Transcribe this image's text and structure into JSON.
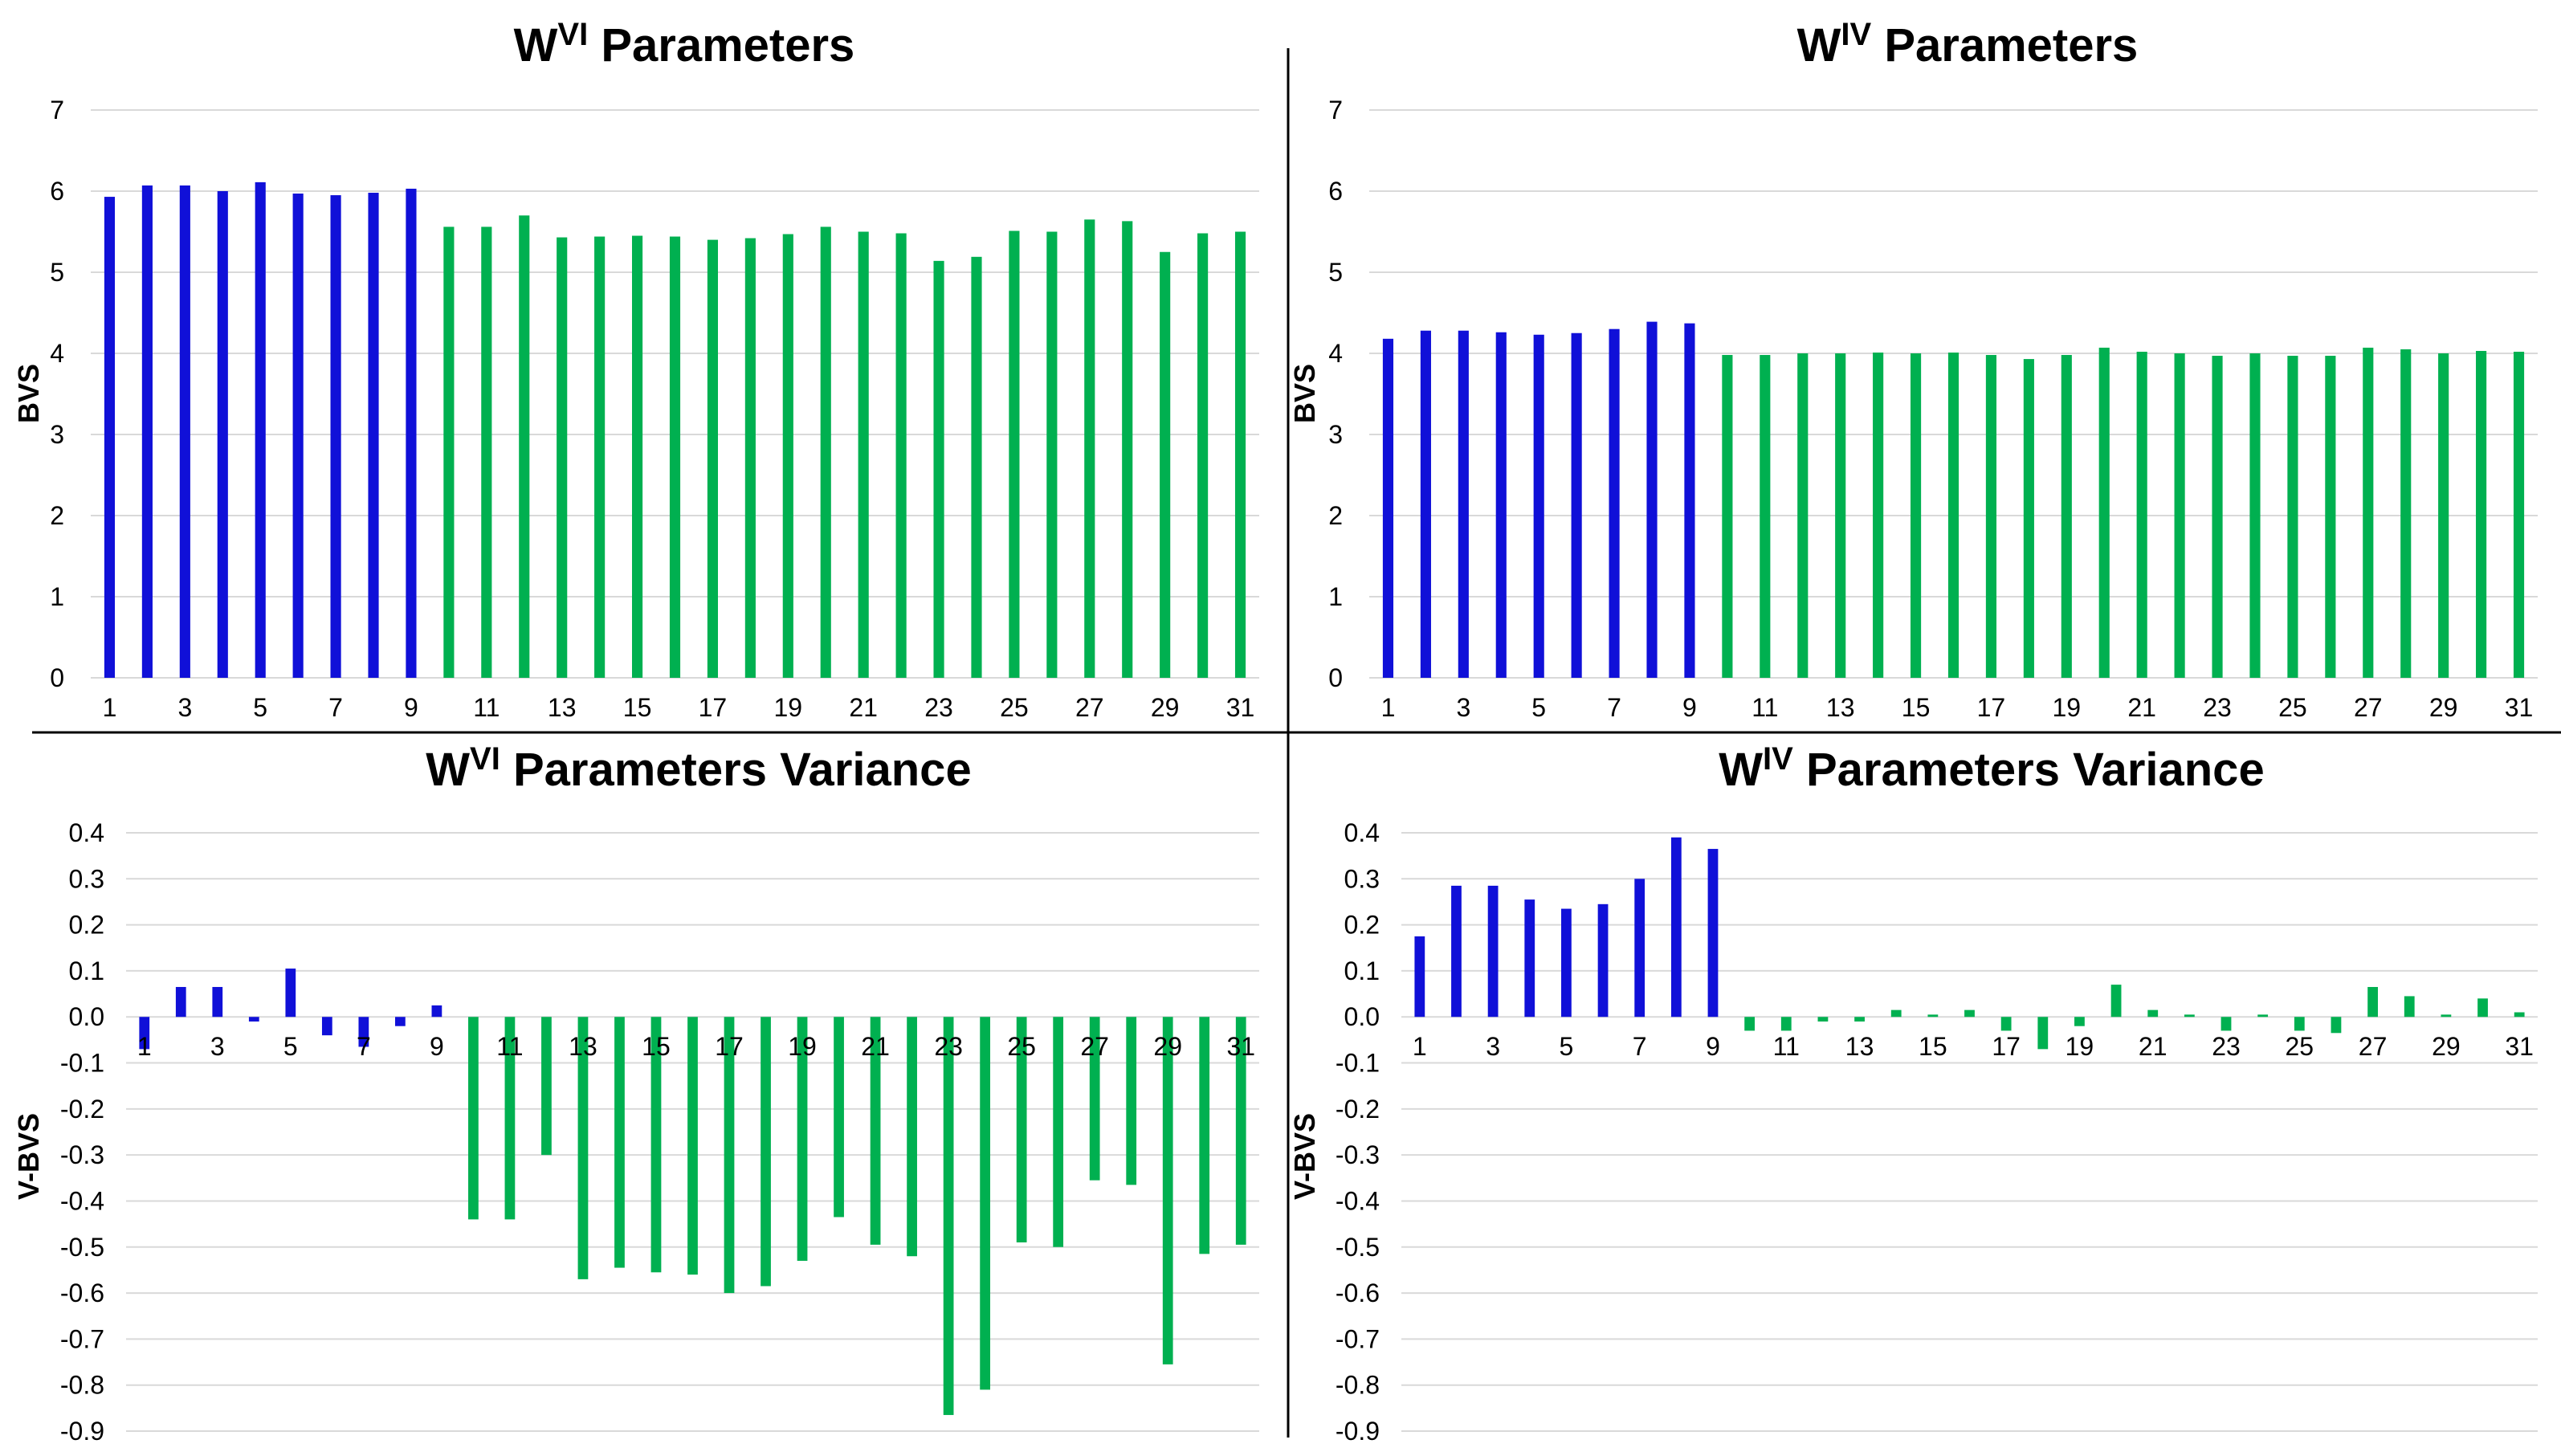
{
  "colors": {
    "first_group": "#1010d8",
    "second_group": "#00b050",
    "grid": "#d9d9d9"
  },
  "chart_data": [
    {
      "type": "bar",
      "title_main": "W",
      "title_sup": "VI",
      "title_rest": " Parameters",
      "ylabel": "BVS",
      "ylim": [
        0,
        7
      ],
      "yticks": [
        "0",
        "1",
        "2",
        "3",
        "4",
        "5",
        "6",
        "7"
      ],
      "ytick_values": [
        0,
        1,
        2,
        3,
        4,
        5,
        6,
        7
      ],
      "xtick_labels": [
        "1",
        "3",
        "5",
        "7",
        "9",
        "11",
        "13",
        "15",
        "17",
        "19",
        "21",
        "23",
        "25",
        "27",
        "29",
        "31"
      ],
      "x": [
        1,
        2,
        3,
        4,
        5,
        6,
        7,
        8,
        9,
        10,
        11,
        12,
        13,
        14,
        15,
        16,
        17,
        18,
        19,
        20,
        21,
        22,
        23,
        24,
        25,
        26,
        27,
        28,
        29,
        30,
        31
      ],
      "values": [
        5.93,
        6.07,
        6.07,
        6.0,
        6.11,
        5.97,
        5.95,
        5.98,
        6.03,
        5.56,
        5.56,
        5.7,
        5.43,
        5.44,
        5.45,
        5.44,
        5.4,
        5.42,
        5.47,
        5.56,
        5.5,
        5.48,
        5.14,
        5.19,
        5.51,
        5.5,
        5.65,
        5.63,
        5.25,
        5.48,
        5.5
      ],
      "group_split": 9
    },
    {
      "type": "bar",
      "title_main": "W",
      "title_sup": "IV",
      "title_rest": " Parameters",
      "ylabel": "BVS",
      "ylim": [
        0,
        7
      ],
      "yticks": [
        "0",
        "1",
        "2",
        "3",
        "4",
        "5",
        "6",
        "7"
      ],
      "ytick_values": [
        0,
        1,
        2,
        3,
        4,
        5,
        6,
        7
      ],
      "xtick_labels": [
        "1",
        "3",
        "5",
        "7",
        "9",
        "11",
        "13",
        "15",
        "17",
        "19",
        "21",
        "23",
        "25",
        "27",
        "29",
        "31"
      ],
      "x": [
        1,
        2,
        3,
        4,
        5,
        6,
        7,
        8,
        9,
        10,
        11,
        12,
        13,
        14,
        15,
        16,
        17,
        18,
        19,
        20,
        21,
        22,
        23,
        24,
        25,
        26,
        27,
        28,
        29,
        30,
        31
      ],
      "values": [
        4.18,
        4.28,
        4.28,
        4.26,
        4.23,
        4.25,
        4.3,
        4.39,
        4.37,
        3.98,
        3.98,
        4.0,
        4.0,
        4.01,
        4.0,
        4.01,
        3.98,
        3.93,
        3.98,
        4.07,
        4.02,
        4.0,
        3.97,
        4.0,
        3.97,
        3.97,
        4.07,
        4.05,
        4.0,
        4.03,
        4.02
      ],
      "group_split": 9
    },
    {
      "type": "bar",
      "title_main": "W",
      "title_sup": "VI",
      "title_rest": " Parameters Variance",
      "ylabel": "V-BVS",
      "ylim": [
        -0.9,
        0.4
      ],
      "yticks": [
        "0.4",
        "0.3",
        "0.2",
        "0.1",
        "0.0",
        "-0.1",
        "-0.2",
        "-0.3",
        "-0.4",
        "-0.5",
        "-0.6",
        "-0.7",
        "-0.8",
        "-0.9"
      ],
      "ytick_values": [
        0.4,
        0.3,
        0.2,
        0.1,
        0.0,
        -0.1,
        -0.2,
        -0.3,
        -0.4,
        -0.5,
        -0.6,
        -0.7,
        -0.8,
        -0.9
      ],
      "xtick_labels": [
        "1",
        "3",
        "5",
        "7",
        "9",
        "11",
        "13",
        "15",
        "17",
        "19",
        "21",
        "23",
        "25",
        "27",
        "29",
        "31"
      ],
      "x": [
        1,
        2,
        3,
        4,
        5,
        6,
        7,
        8,
        9,
        10,
        11,
        12,
        13,
        14,
        15,
        16,
        17,
        18,
        19,
        20,
        21,
        22,
        23,
        24,
        25,
        26,
        27,
        28,
        29,
        30,
        31
      ],
      "values": [
        -0.07,
        0.065,
        0.065,
        -0.01,
        0.105,
        -0.04,
        -0.065,
        -0.02,
        0.025,
        -0.44,
        -0.44,
        -0.3,
        -0.57,
        -0.545,
        -0.555,
        -0.56,
        -0.6,
        -0.585,
        -0.53,
        -0.435,
        -0.495,
        -0.52,
        -0.865,
        -0.81,
        -0.49,
        -0.5,
        -0.355,
        -0.365,
        -0.755,
        -0.515,
        -0.495
      ],
      "group_split": 9
    },
    {
      "type": "bar",
      "title_main": "W",
      "title_sup": "IV",
      "title_rest": " Parameters Variance",
      "ylabel": "V-BVS",
      "ylim": [
        -0.9,
        0.4
      ],
      "yticks": [
        "0.4",
        "0.3",
        "0.2",
        "0.1",
        "0.0",
        "-0.1",
        "-0.2",
        "-0.3",
        "-0.4",
        "-0.5",
        "-0.6",
        "-0.7",
        "-0.8",
        "-0.9"
      ],
      "ytick_values": [
        0.4,
        0.3,
        0.2,
        0.1,
        0.0,
        -0.1,
        -0.2,
        -0.3,
        -0.4,
        -0.5,
        -0.6,
        -0.7,
        -0.8,
        -0.9
      ],
      "xtick_labels": [
        "1",
        "3",
        "5",
        "7",
        "9",
        "11",
        "13",
        "15",
        "17",
        "19",
        "21",
        "23",
        "25",
        "27",
        "29",
        "31"
      ],
      "x": [
        1,
        2,
        3,
        4,
        5,
        6,
        7,
        8,
        9,
        10,
        11,
        12,
        13,
        14,
        15,
        16,
        17,
        18,
        19,
        20,
        21,
        22,
        23,
        24,
        25,
        26,
        27,
        28,
        29,
        30,
        31
      ],
      "values": [
        0.175,
        0.285,
        0.285,
        0.255,
        0.235,
        0.245,
        0.3,
        0.39,
        0.365,
        -0.03,
        -0.03,
        -0.01,
        -0.01,
        0.015,
        0.005,
        0.015,
        -0.03,
        -0.07,
        -0.02,
        0.07,
        0.015,
        0.005,
        -0.03,
        0.005,
        -0.03,
        -0.035,
        0.065,
        0.045,
        0.005,
        0.04,
        0.01
      ],
      "group_split": 9
    }
  ]
}
